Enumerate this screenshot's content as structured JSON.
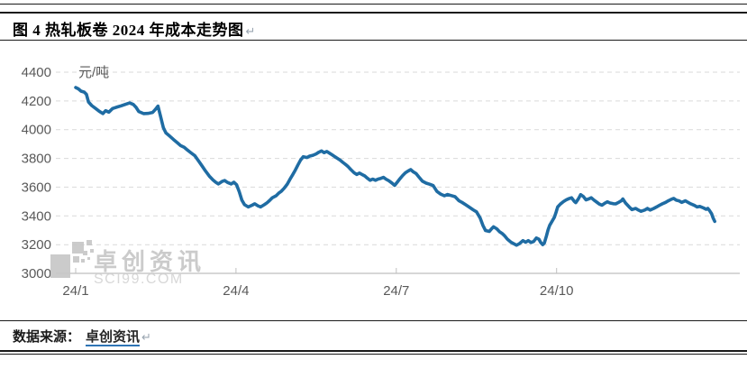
{
  "header": {
    "title": "图 4 热轧板卷 2024 年成本走势图",
    "paragraph_mark": "↵"
  },
  "footer": {
    "source_label": "数据来源：",
    "source_link": "卓创资讯",
    "paragraph_mark": "↵"
  },
  "watermark": {
    "brand": "卓创资讯",
    "domain": "SCI99.COM"
  },
  "colors": {
    "line": "#1f6ca3",
    "gridline": "#d9d9d9",
    "axis": "#bfbfbf",
    "axis_text": "#595959",
    "watermark": "#c6c6c6",
    "watermark_light": "#d3d3d3",
    "rule": "#1a1a1a",
    "link_underline": "#2e74b5",
    "paragraph_mark": "#9aa5b1"
  },
  "chart_data": {
    "type": "line",
    "title": "热轧板卷 2024 年成本走势",
    "unit_label": "元/吨",
    "ylabel": "元/吨",
    "xlabel": "",
    "ylim": [
      3000,
      4400
    ],
    "y_ticks": [
      4400,
      4200,
      4000,
      3800,
      3600,
      3400,
      3200,
      3000
    ],
    "x_ticks": [
      {
        "m": 1,
        "label": "24/1"
      },
      {
        "m": 4,
        "label": "24/4"
      },
      {
        "m": 7,
        "label": "24/7"
      },
      {
        "m": 10,
        "label": "24/10"
      }
    ],
    "grid": "horizontal-dashed",
    "legend": "none",
    "series": [
      {
        "color": "#1f6ca3",
        "points": [
          [
            1.0,
            4293
          ],
          [
            1.05,
            4284
          ],
          [
            1.1,
            4268
          ],
          [
            1.16,
            4261
          ],
          [
            1.2,
            4246
          ],
          [
            1.24,
            4193
          ],
          [
            1.3,
            4168
          ],
          [
            1.37,
            4148
          ],
          [
            1.44,
            4128
          ],
          [
            1.51,
            4112
          ],
          [
            1.56,
            4132
          ],
          [
            1.62,
            4122
          ],
          [
            1.69,
            4147
          ],
          [
            1.76,
            4156
          ],
          [
            1.85,
            4166
          ],
          [
            1.93,
            4176
          ],
          [
            2.01,
            4186
          ],
          [
            2.08,
            4175
          ],
          [
            2.13,
            4155
          ],
          [
            2.18,
            4126
          ],
          [
            2.27,
            4112
          ],
          [
            2.35,
            4113
          ],
          [
            2.44,
            4120
          ],
          [
            2.49,
            4141
          ],
          [
            2.54,
            4164
          ],
          [
            2.59,
            4090
          ],
          [
            2.64,
            4013
          ],
          [
            2.69,
            3977
          ],
          [
            2.76,
            3955
          ],
          [
            2.83,
            3932
          ],
          [
            2.9,
            3910
          ],
          [
            2.96,
            3890
          ],
          [
            3.03,
            3878
          ],
          [
            3.1,
            3856
          ],
          [
            3.16,
            3838
          ],
          [
            3.23,
            3819
          ],
          [
            3.3,
            3782
          ],
          [
            3.37,
            3745
          ],
          [
            3.43,
            3712
          ],
          [
            3.5,
            3677
          ],
          [
            3.57,
            3650
          ],
          [
            3.62,
            3634
          ],
          [
            3.67,
            3622
          ],
          [
            3.74,
            3640
          ],
          [
            3.79,
            3646
          ],
          [
            3.84,
            3633
          ],
          [
            3.91,
            3622
          ],
          [
            3.96,
            3634
          ],
          [
            4.01,
            3617
          ],
          [
            4.06,
            3568
          ],
          [
            4.11,
            3510
          ],
          [
            4.16,
            3478
          ],
          [
            4.23,
            3462
          ],
          [
            4.3,
            3474
          ],
          [
            4.35,
            3484
          ],
          [
            4.41,
            3470
          ],
          [
            4.46,
            3462
          ],
          [
            4.53,
            3478
          ],
          [
            4.58,
            3491
          ],
          [
            4.63,
            3508
          ],
          [
            4.68,
            3526
          ],
          [
            4.75,
            3540
          ],
          [
            4.8,
            3558
          ],
          [
            4.85,
            3572
          ],
          [
            4.9,
            3592
          ],
          [
            4.96,
            3621
          ],
          [
            5.01,
            3655
          ],
          [
            5.06,
            3686
          ],
          [
            5.11,
            3718
          ],
          [
            5.16,
            3755
          ],
          [
            5.21,
            3790
          ],
          [
            5.26,
            3812
          ],
          [
            5.33,
            3806
          ],
          [
            5.38,
            3816
          ],
          [
            5.44,
            3822
          ],
          [
            5.5,
            3831
          ],
          [
            5.55,
            3843
          ],
          [
            5.6,
            3852
          ],
          [
            5.65,
            3840
          ],
          [
            5.7,
            3848
          ],
          [
            5.75,
            3836
          ],
          [
            5.8,
            3825
          ],
          [
            5.85,
            3812
          ],
          [
            5.9,
            3800
          ],
          [
            5.95,
            3788
          ],
          [
            6.0,
            3772
          ],
          [
            6.05,
            3758
          ],
          [
            6.1,
            3742
          ],
          [
            6.15,
            3722
          ],
          [
            6.21,
            3700
          ],
          [
            6.26,
            3688
          ],
          [
            6.31,
            3698
          ],
          [
            6.36,
            3688
          ],
          [
            6.41,
            3678
          ],
          [
            6.46,
            3662
          ],
          [
            6.51,
            3648
          ],
          [
            6.56,
            3656
          ],
          [
            6.61,
            3648
          ],
          [
            6.66,
            3656
          ],
          [
            6.71,
            3661
          ],
          [
            6.76,
            3668
          ],
          [
            6.81,
            3655
          ],
          [
            6.86,
            3645
          ],
          [
            6.92,
            3628
          ],
          [
            6.97,
            3612
          ],
          [
            7.02,
            3636
          ],
          [
            7.07,
            3660
          ],
          [
            7.12,
            3681
          ],
          [
            7.17,
            3700
          ],
          [
            7.22,
            3712
          ],
          [
            7.27,
            3722
          ],
          [
            7.32,
            3706
          ],
          [
            7.37,
            3695
          ],
          [
            7.42,
            3672
          ],
          [
            7.49,
            3641
          ],
          [
            7.56,
            3628
          ],
          [
            7.63,
            3620
          ],
          [
            7.69,
            3611
          ],
          [
            7.76,
            3570
          ],
          [
            7.83,
            3552
          ],
          [
            7.9,
            3540
          ],
          [
            7.96,
            3549
          ],
          [
            8.03,
            3541
          ],
          [
            8.1,
            3534
          ],
          [
            8.17,
            3506
          ],
          [
            8.23,
            3494
          ],
          [
            8.3,
            3477
          ],
          [
            8.37,
            3460
          ],
          [
            8.44,
            3442
          ],
          [
            8.5,
            3428
          ],
          [
            8.57,
            3385
          ],
          [
            8.62,
            3334
          ],
          [
            8.67,
            3298
          ],
          [
            8.74,
            3292
          ],
          [
            8.79,
            3313
          ],
          [
            8.82,
            3324
          ],
          [
            8.88,
            3310
          ],
          [
            8.93,
            3291
          ],
          [
            8.98,
            3278
          ],
          [
            9.03,
            3260
          ],
          [
            9.08,
            3238
          ],
          [
            9.15,
            3216
          ],
          [
            9.2,
            3206
          ],
          [
            9.25,
            3196
          ],
          [
            9.3,
            3206
          ],
          [
            9.37,
            3228
          ],
          [
            9.42,
            3217
          ],
          [
            9.47,
            3228
          ],
          [
            9.52,
            3215
          ],
          [
            9.57,
            3222
          ],
          [
            9.62,
            3246
          ],
          [
            9.67,
            3238
          ],
          [
            9.7,
            3217
          ],
          [
            9.74,
            3200
          ],
          [
            9.77,
            3211
          ],
          [
            9.81,
            3260
          ],
          [
            9.84,
            3302
          ],
          [
            9.87,
            3334
          ],
          [
            9.92,
            3366
          ],
          [
            9.96,
            3391
          ],
          [
            9.99,
            3425
          ],
          [
            10.02,
            3462
          ],
          [
            10.07,
            3482
          ],
          [
            10.13,
            3500
          ],
          [
            10.18,
            3512
          ],
          [
            10.23,
            3520
          ],
          [
            10.28,
            3526
          ],
          [
            10.33,
            3502
          ],
          [
            10.36,
            3492
          ],
          [
            10.41,
            3520
          ],
          [
            10.45,
            3548
          ],
          [
            10.5,
            3535
          ],
          [
            10.55,
            3512
          ],
          [
            10.6,
            3518
          ],
          [
            10.65,
            3526
          ],
          [
            10.7,
            3510
          ],
          [
            10.75,
            3496
          ],
          [
            10.8,
            3482
          ],
          [
            10.85,
            3475
          ],
          [
            10.9,
            3488
          ],
          [
            10.95,
            3498
          ],
          [
            11.0,
            3490
          ],
          [
            11.06,
            3485
          ],
          [
            11.11,
            3484
          ],
          [
            11.16,
            3494
          ],
          [
            11.21,
            3505
          ],
          [
            11.24,
            3518
          ],
          [
            11.29,
            3490
          ],
          [
            11.36,
            3462
          ],
          [
            11.41,
            3444
          ],
          [
            11.48,
            3452
          ],
          [
            11.53,
            3441
          ],
          [
            11.58,
            3432
          ],
          [
            11.65,
            3441
          ],
          [
            11.7,
            3452
          ],
          [
            11.75,
            3441
          ],
          [
            11.82,
            3452
          ],
          [
            11.87,
            3462
          ],
          [
            11.92,
            3473
          ],
          [
            11.98,
            3484
          ],
          [
            12.04,
            3494
          ],
          [
            12.09,
            3505
          ],
          [
            12.15,
            3516
          ],
          [
            12.19,
            3522
          ],
          [
            12.24,
            3509
          ],
          [
            12.29,
            3505
          ],
          [
            12.34,
            3494
          ],
          [
            12.41,
            3505
          ],
          [
            12.46,
            3494
          ],
          [
            12.51,
            3484
          ],
          [
            12.58,
            3473
          ],
          [
            12.63,
            3462
          ],
          [
            12.68,
            3466
          ],
          [
            12.75,
            3455
          ],
          [
            12.8,
            3446
          ],
          [
            12.83,
            3452
          ],
          [
            12.86,
            3438
          ],
          [
            12.9,
            3415
          ],
          [
            12.93,
            3385
          ],
          [
            12.96,
            3362
          ]
        ]
      }
    ]
  }
}
